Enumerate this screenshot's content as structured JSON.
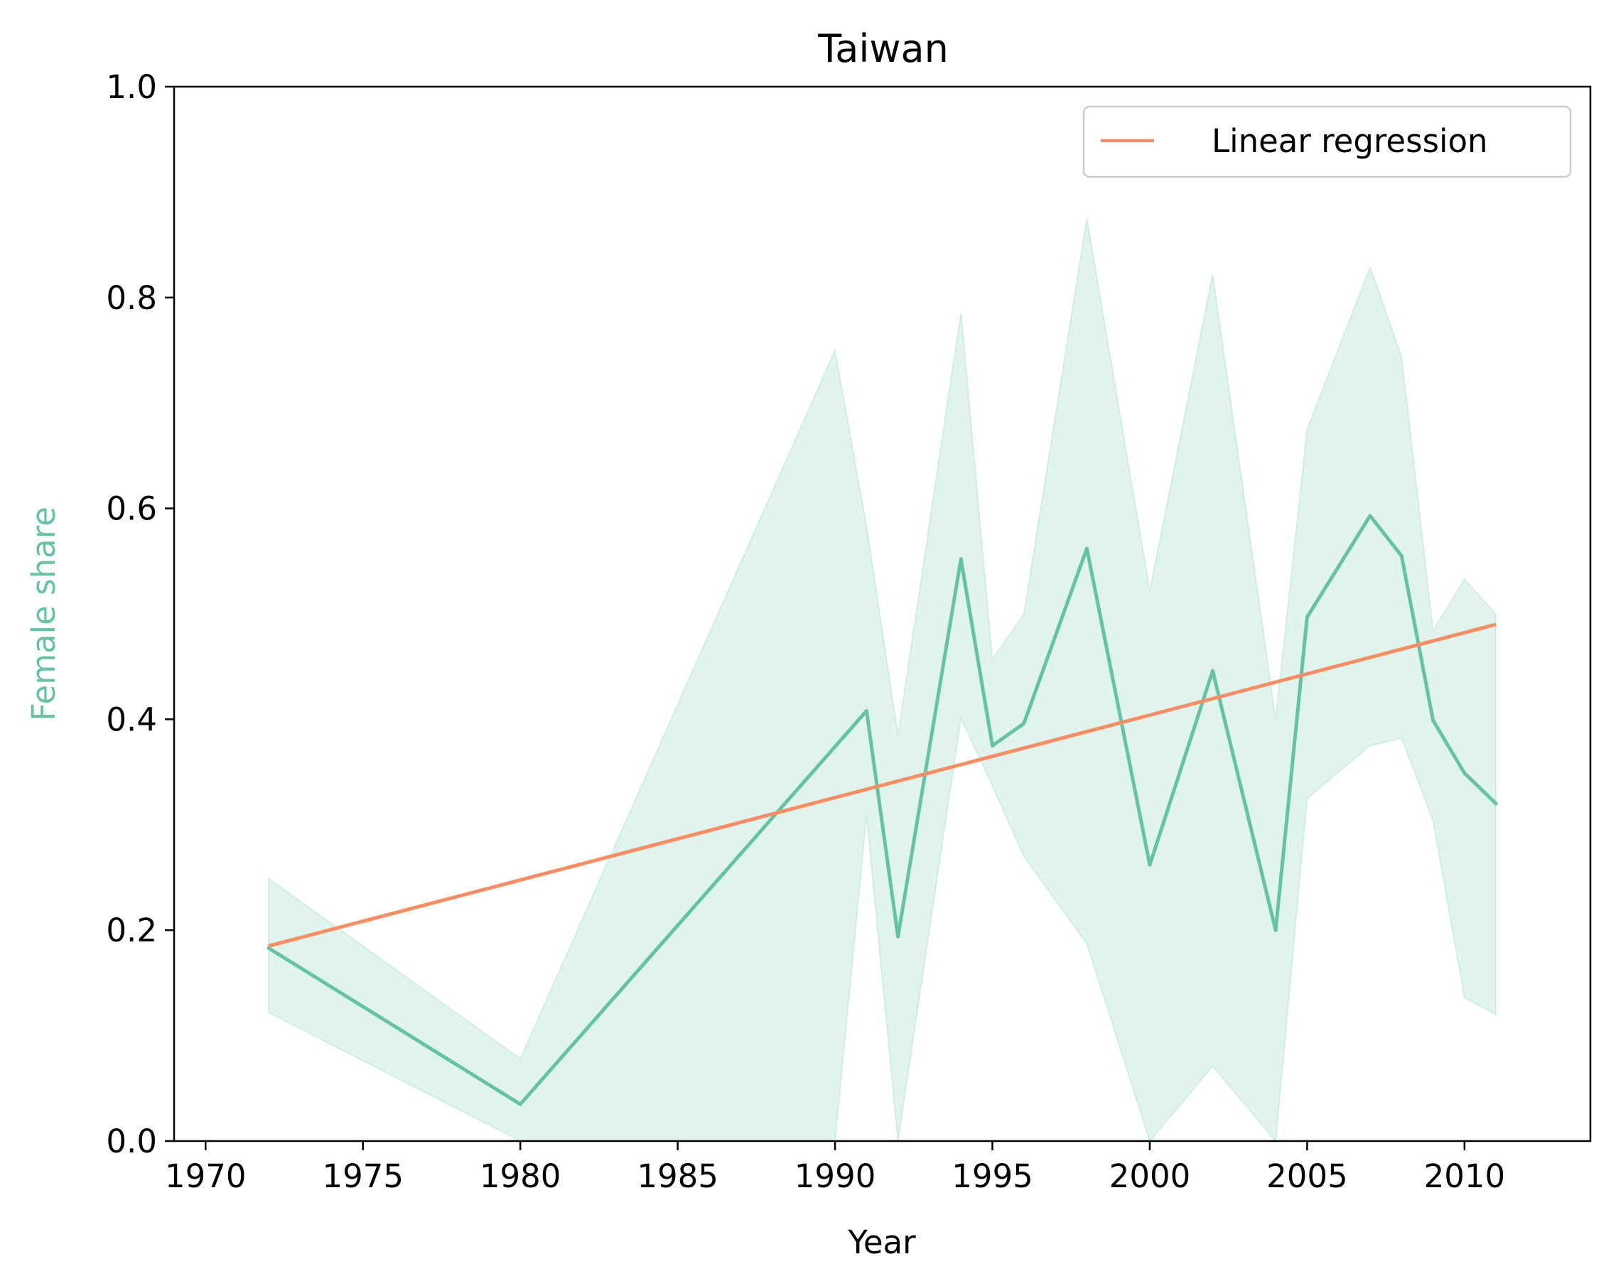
{
  "chart_data": {
    "type": "line",
    "title": "Taiwan",
    "xlabel": "Year",
    "ylabel": "Female share",
    "xlim": [
      1969,
      2014
    ],
    "ylim": [
      0,
      1
    ],
    "xticks": [
      1970,
      1975,
      1980,
      1985,
      1990,
      1995,
      2000,
      2005,
      2010
    ],
    "yticks": [
      "0.0",
      "0.2",
      "0.4",
      "0.6",
      "0.8",
      "1.0"
    ],
    "grid": false,
    "legend_position": "top-right",
    "colors": {
      "mean": "#66c2a5",
      "band": "#66c2a5",
      "regression": "#fc8d62",
      "ylabel": "#66c2a5"
    },
    "series": [
      {
        "kind": "mean_line",
        "x": [
          1972,
          1980,
          1991,
          1992,
          1994,
          1995,
          1996,
          1998,
          2000,
          2002,
          2004,
          2005,
          2007,
          2008,
          2009,
          2010,
          2011
        ],
        "values": [
          0.183,
          0.035,
          0.408,
          0.194,
          0.552,
          0.375,
          0.396,
          0.562,
          0.262,
          0.446,
          0.2,
          0.497,
          0.593,
          0.555,
          0.399,
          0.349,
          0.32
        ]
      },
      {
        "kind": "confidence_band",
        "x": [
          1972,
          1980,
          1990,
          1991,
          1992,
          1994,
          1995,
          1996,
          1998,
          2000,
          2002,
          2004,
          2005,
          2007,
          2008,
          2009,
          2010,
          2011
        ],
        "lower": [
          0.122,
          0.0,
          0.0,
          0.309,
          0.0,
          0.401,
          0.337,
          0.27,
          0.187,
          0.0,
          0.071,
          0.0,
          0.325,
          0.375,
          0.382,
          0.304,
          0.136,
          0.12
        ],
        "upper": [
          0.249,
          0.078,
          0.75,
          0.583,
          0.385,
          0.786,
          0.457,
          0.5,
          0.875,
          0.522,
          0.822,
          0.4,
          0.675,
          0.829,
          0.744,
          0.484,
          0.533,
          0.5
        ]
      },
      {
        "kind": "regression",
        "name": "Linear regression",
        "x": [
          1972,
          2011
        ],
        "values": [
          0.185,
          0.49
        ]
      }
    ]
  }
}
